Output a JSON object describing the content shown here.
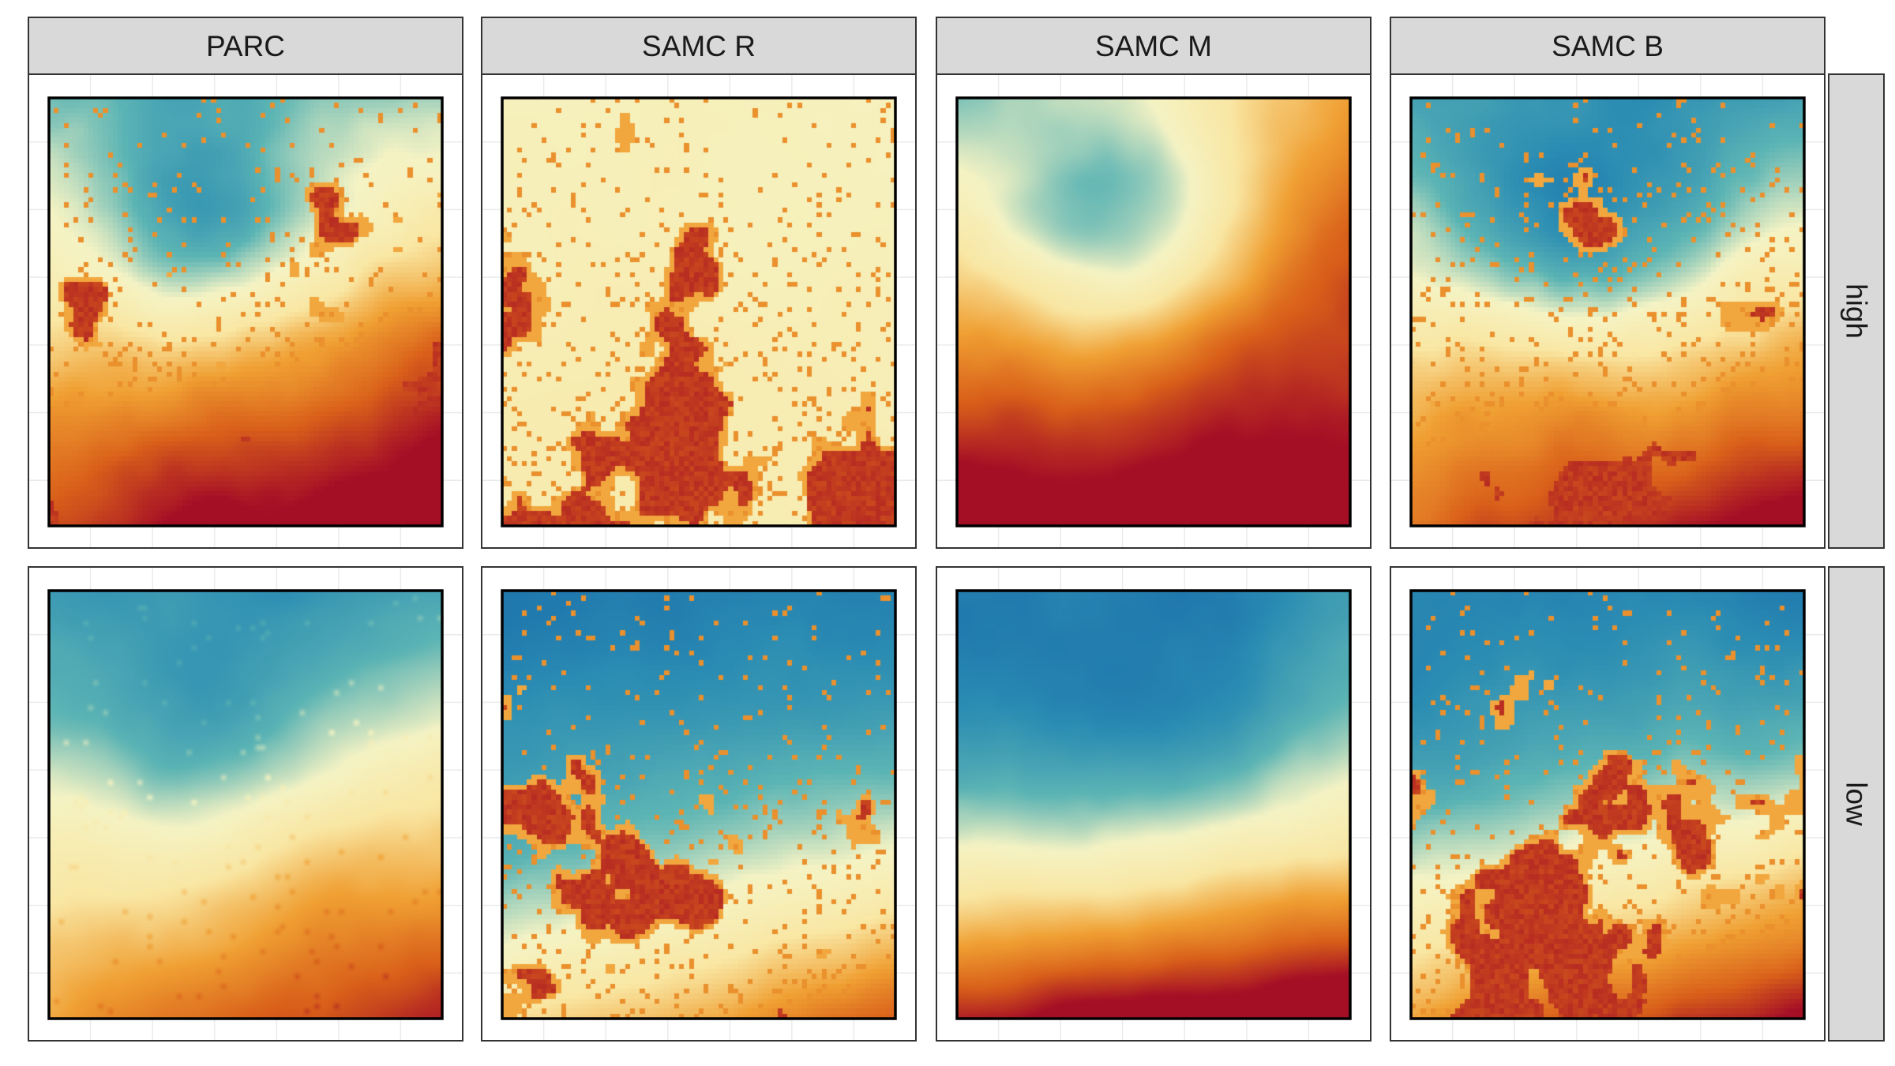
{
  "chart_data": {
    "type": "heatmap",
    "layout": "facet-grid",
    "columns": [
      "PARC",
      "SAMC R",
      "SAMC M",
      "SAMC B"
    ],
    "rows": [
      "high",
      "low"
    ],
    "grid": true,
    "legend": "none",
    "colors": {
      "palette_low_to_high": [
        "#1565a8",
        "#2b8cb3",
        "#5bb4b4",
        "#f5f3c4",
        "#f9e7a4",
        "#f0a033",
        "#d9601a",
        "#a50f26"
      ],
      "strip_fill": "#d9d9d9",
      "strip_border": "#333333",
      "panel_border": "#333333",
      "raster_frame": "#000000",
      "grid_line": "#ebebeb"
    },
    "panels": [
      {
        "column": "PARC",
        "row": "high",
        "field": "mixed",
        "blob_ratio": 0.42,
        "blob_density": 0.08,
        "sharp_blobs": true
      },
      {
        "column": "SAMC R",
        "row": "high",
        "field": "pale-uniform",
        "blob_ratio": 0.5,
        "blob_density": 0.1,
        "sharp_blobs": true
      },
      {
        "column": "SAMC M",
        "row": "high",
        "field": "smooth-warm",
        "blob_ratio": 0.0,
        "blob_density": 0.0,
        "sharp_blobs": false
      },
      {
        "column": "SAMC B",
        "row": "high",
        "field": "mixed-cool",
        "blob_ratio": 0.44,
        "blob_density": 0.1,
        "sharp_blobs": true
      },
      {
        "column": "PARC",
        "row": "low",
        "field": "smooth-cool",
        "blob_ratio": 0.0,
        "blob_density": 0.02,
        "sharp_blobs": false
      },
      {
        "column": "SAMC R",
        "row": "low",
        "field": "deep-blue",
        "blob_ratio": 0.4,
        "blob_density": 0.07,
        "sharp_blobs": true
      },
      {
        "column": "SAMC M",
        "row": "low",
        "field": "smooth-gradient",
        "blob_ratio": 0.0,
        "blob_density": 0.0,
        "sharp_blobs": false
      },
      {
        "column": "SAMC B",
        "row": "low",
        "field": "mixed-blue",
        "blob_ratio": 0.42,
        "blob_density": 0.08,
        "sharp_blobs": true
      }
    ]
  }
}
